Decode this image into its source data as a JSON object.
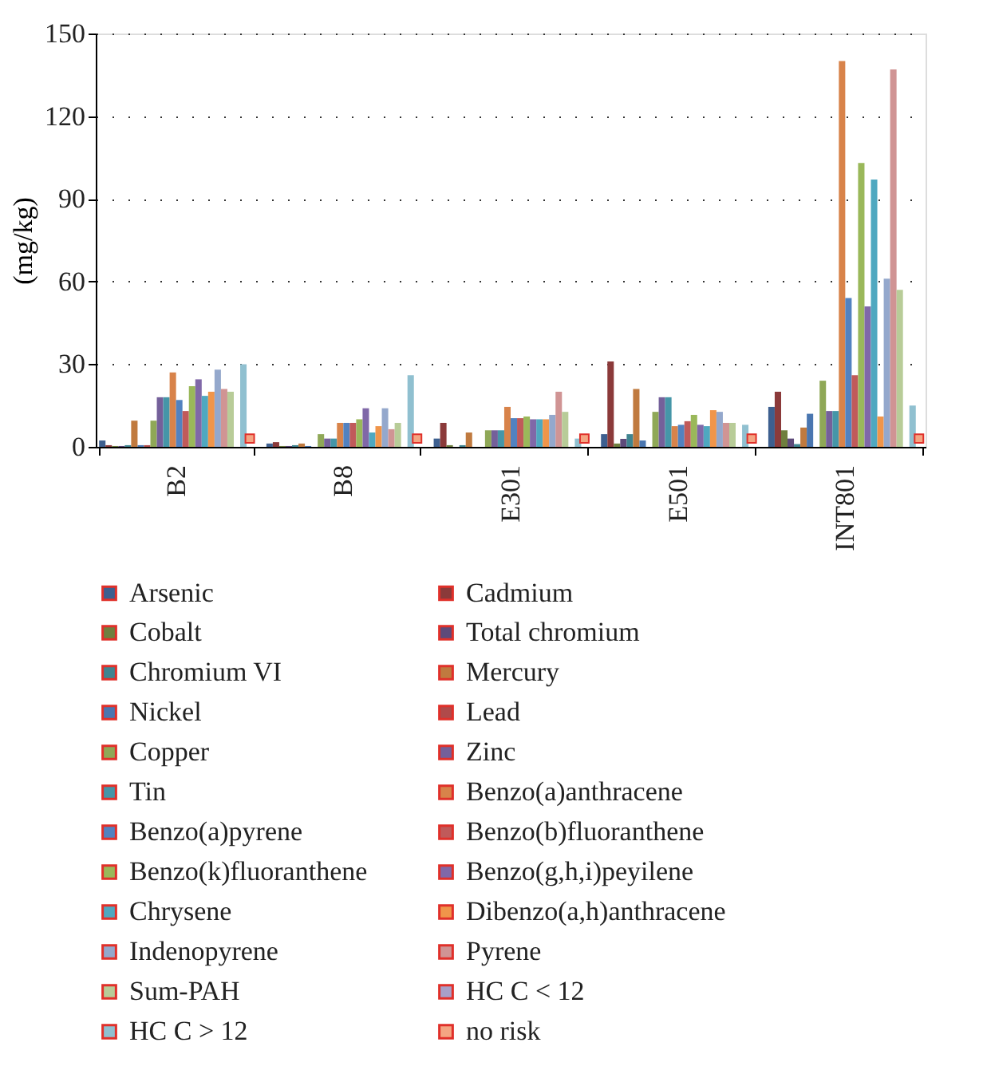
{
  "chart_data": {
    "type": "bar",
    "ylabel": "(mg/kg)",
    "categories": [
      "B2",
      "B8",
      "E301",
      "E501",
      "INT801"
    ],
    "ylim": [
      0,
      150
    ],
    "yticks": [
      0,
      30,
      60,
      90,
      120,
      150
    ],
    "grid": "y",
    "legend": "bottom",
    "series": [
      {
        "name": "Arsenic",
        "color": "#3d5f8f",
        "values": [
          2.3,
          1.2,
          3,
          4.6,
          14.5
        ]
      },
      {
        "name": "Cadmium",
        "color": "#8b3a3a",
        "values": [
          0.6,
          1.7,
          8.7,
          31,
          20
        ]
      },
      {
        "name": "Cobalt",
        "color": "#6f7f3f",
        "values": [
          0.3,
          0.3,
          0.6,
          1.2,
          6
        ]
      },
      {
        "name": "Total chromium",
        "color": "#5e4a7a",
        "values": [
          0.3,
          0.3,
          0,
          2.9,
          3
        ]
      },
      {
        "name": "Chromium VI",
        "color": "#3f8490",
        "values": [
          0.6,
          0.6,
          0.6,
          4.6,
          1
        ]
      },
      {
        "name": "Mercury",
        "color": "#c07a3f",
        "values": [
          9.5,
          1.2,
          5.2,
          21,
          7
        ]
      },
      {
        "name": "Nickel",
        "color": "#4a76b0",
        "values": [
          0.6,
          0.3,
          0,
          2.3,
          12
        ]
      },
      {
        "name": "Lead",
        "color": "#b04a4a",
        "values": [
          0.6,
          0,
          0,
          0,
          0
        ]
      },
      {
        "name": "Copper",
        "color": "#8fa857",
        "values": [
          9.5,
          4.6,
          6,
          12.7,
          24
        ]
      },
      {
        "name": "Zinc",
        "color": "#74609a",
        "values": [
          18,
          3,
          6,
          18,
          13
        ]
      },
      {
        "name": "Tin",
        "color": "#4596a8",
        "values": [
          18,
          3,
          6,
          18,
          13
        ]
      },
      {
        "name": "Benzo(a)anthracene",
        "color": "#d8834a",
        "values": [
          27,
          8.7,
          14.5,
          7.5,
          140
        ]
      },
      {
        "name": "Benzo(a)pyrene",
        "color": "#5282c0",
        "values": [
          17,
          8.7,
          10.4,
          8,
          54
        ]
      },
      {
        "name": "Benzo(b)fluoranthene",
        "color": "#c05a5a",
        "values": [
          13,
          8.7,
          10.4,
          9.3,
          26
        ]
      },
      {
        "name": "Benzo(k)fluoranthene",
        "color": "#9ab85a",
        "values": [
          22,
          10,
          11,
          11.6,
          103
        ]
      },
      {
        "name": "Benzo(g,h,i)peyilene",
        "color": "#8068a8",
        "values": [
          24.5,
          14,
          10,
          8,
          51
        ]
      },
      {
        "name": "Chrysene",
        "color": "#4fa8c0",
        "values": [
          18.5,
          5.2,
          10,
          7.5,
          97
        ]
      },
      {
        "name": "Dibenzo(a,h)anthracene",
        "color": "#f0954a",
        "values": [
          20,
          7.5,
          10,
          13.3,
          11
        ]
      },
      {
        "name": "Indenopyrene",
        "color": "#94a8cc",
        "values": [
          28,
          14,
          11.6,
          12.7,
          61
        ]
      },
      {
        "name": "Pyrene",
        "color": "#d09494",
        "values": [
          21,
          6.4,
          20,
          8.7,
          137
        ]
      },
      {
        "name": "Sum-PAH",
        "color": "#b8cc98",
        "values": [
          20,
          8.7,
          12.7,
          8.7,
          57
        ]
      },
      {
        "name": "HC C < 12",
        "color": "#a8a0c8",
        "values": [
          0,
          0,
          0,
          0,
          0
        ]
      },
      {
        "name": "HC C > 12",
        "color": "#90c0d0",
        "values": [
          30,
          26,
          3,
          8,
          15
        ]
      },
      {
        "name": "no risk",
        "type": "scatter",
        "marker": "square",
        "color": "#f4a582",
        "values": [
          3,
          3,
          3,
          3,
          3
        ]
      }
    ]
  }
}
